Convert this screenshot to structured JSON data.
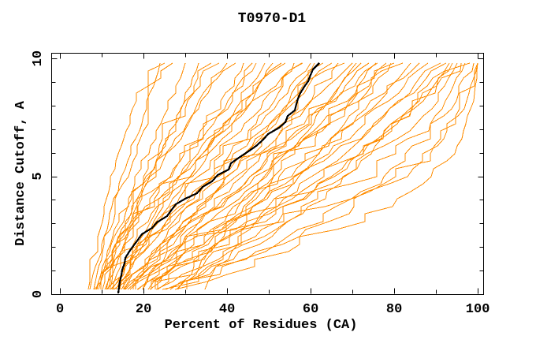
{
  "title": "T0970-D1",
  "colors": {
    "background": "#ffffff",
    "axis": "#000000",
    "orange_curve": "#ff8c00",
    "black_curve": "#000000"
  },
  "chart_data": {
    "type": "line",
    "title": "T0970-D1",
    "xlabel": "Percent of Residues (CA)",
    "ylabel": "Distance Cutoff, A",
    "xlim": [
      -2.1,
      101.3
    ],
    "ylim": [
      0,
      10.24
    ],
    "x_major_ticks": [
      0,
      20,
      40,
      60,
      80,
      100
    ],
    "x_minor_ticks": [
      10,
      30,
      50,
      70,
      90
    ],
    "y_major_ticks": [
      0,
      5,
      10
    ],
    "y_minor_ticks": [
      1,
      2,
      3,
      4,
      6,
      7,
      8,
      9
    ],
    "x_tick_labels": [
      "0",
      "20",
      "40",
      "60",
      "80",
      "100"
    ],
    "y_tick_labels": [
      "0",
      "5",
      "10"
    ],
    "grid": false,
    "legend": null,
    "series_colors": {
      "models": "#ff8c00",
      "highlighted_model": "#000000"
    },
    "highlighted_series": {
      "name": "highlighted-model",
      "color": "#000000",
      "points": [
        [
          0,
          14
        ],
        [
          0.5,
          14.3
        ],
        [
          1,
          14.9
        ],
        [
          1.5,
          15.8
        ],
        [
          2,
          17
        ],
        [
          2.5,
          19.2
        ],
        [
          3,
          23.5
        ],
        [
          3.5,
          26.5
        ],
        [
          4,
          30.5
        ],
        [
          4.5,
          34
        ],
        [
          5,
          38
        ],
        [
          5.5,
          41
        ],
        [
          6,
          45
        ],
        [
          6.5,
          48.5
        ],
        [
          7,
          52.5
        ],
        [
          7.5,
          54.5
        ],
        [
          8,
          56.5
        ],
        [
          8.5,
          57.5
        ],
        [
          9,
          59.5
        ],
        [
          9.5,
          61
        ],
        [
          9.8,
          62
        ]
      ]
    },
    "model_series": {
      "name": "model-curves",
      "color": "#ff8c00",
      "cutoff_grid": [
        0,
        2,
        4,
        6,
        8,
        9.8
      ],
      "curves_percent_at_cutoffs": [
        [
          7,
          10,
          13,
          17,
          21,
          24
        ],
        [
          8,
          11,
          15,
          19,
          24,
          27
        ],
        [
          9,
          12,
          16,
          21,
          26,
          30
        ],
        [
          10,
          13,
          18,
          24,
          29,
          33
        ],
        [
          8,
          12,
          17,
          23,
          30,
          35
        ],
        [
          11,
          15,
          20,
          26,
          33,
          38
        ],
        [
          9,
          14,
          20,
          27,
          34,
          40
        ],
        [
          12,
          16,
          22,
          29,
          36,
          42
        ],
        [
          10,
          15,
          22,
          30,
          38,
          44
        ],
        [
          13,
          18,
          25,
          33,
          41,
          46
        ],
        [
          8,
          14,
          22,
          31,
          40,
          47
        ],
        [
          14,
          19,
          27,
          35,
          43,
          49
        ],
        [
          11,
          17,
          25,
          34,
          44,
          51
        ],
        [
          15,
          21,
          29,
          38,
          46,
          53
        ],
        [
          9,
          16,
          26,
          36,
          46,
          54
        ],
        [
          12,
          19,
          28,
          38,
          48,
          56
        ],
        [
          16,
          23,
          32,
          41,
          50,
          57
        ],
        [
          10,
          18,
          28,
          39,
          50,
          58
        ],
        [
          13,
          21,
          31,
          42,
          52,
          60
        ],
        [
          17,
          25,
          35,
          45,
          54,
          61
        ],
        [
          11,
          20,
          31,
          43,
          55,
          63
        ],
        [
          14,
          23,
          34,
          46,
          57,
          65
        ],
        [
          18,
          27,
          38,
          49,
          59,
          66
        ],
        [
          12,
          22,
          34,
          47,
          59,
          68
        ],
        [
          15,
          25,
          37,
          50,
          61,
          70
        ],
        [
          19,
          29,
          41,
          53,
          64,
          72
        ],
        [
          13,
          24,
          37,
          51,
          64,
          74
        ],
        [
          16,
          27,
          40,
          54,
          66,
          76
        ],
        [
          20,
          31,
          44,
          57,
          69,
          78
        ],
        [
          14,
          26,
          40,
          55,
          69,
          80
        ],
        [
          17,
          30,
          44,
          59,
          72,
          82
        ],
        [
          21,
          34,
          48,
          62,
          74,
          84
        ],
        [
          15,
          29,
          45,
          61,
          75,
          86
        ],
        [
          18,
          33,
          49,
          65,
          78,
          88
        ],
        [
          22,
          37,
          53,
          68,
          80,
          90
        ],
        [
          16,
          32,
          50,
          67,
          81,
          92
        ],
        [
          25,
          42,
          58,
          72,
          84,
          94
        ],
        [
          19,
          36,
          55,
          72,
          85,
          96
        ],
        [
          23,
          41,
          60,
          76,
          88,
          98
        ],
        [
          26,
          46,
          66,
          83,
          92,
          97
        ],
        [
          20,
          45,
          62,
          74,
          85,
          93
        ],
        [
          24,
          50,
          70,
          85,
          94,
          99
        ],
        [
          28,
          60,
          82,
          95,
          99,
          100
        ],
        [
          22,
          52,
          75,
          90,
          97,
          100
        ],
        [
          7,
          9,
          11,
          14,
          18,
          25
        ],
        [
          30,
          38,
          47,
          56,
          65,
          71
        ],
        [
          33,
          42,
          52,
          62,
          72,
          79
        ],
        [
          27,
          36,
          46,
          57,
          68,
          75
        ],
        [
          20,
          40,
          70,
          88,
          96,
          100
        ],
        [
          18,
          35,
          60,
          78,
          90,
          95
        ]
      ]
    }
  }
}
